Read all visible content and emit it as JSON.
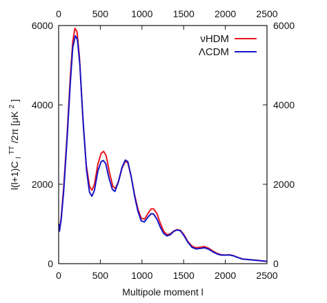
{
  "chart_data": {
    "type": "line",
    "xlabel": "Multipole moment l",
    "ylabel_parts": {
      "base": "l(l+1)C",
      "sub": "l",
      "sup": "TT",
      "mid": "/2π [μK",
      "sup2": "2",
      "end": "]"
    },
    "xlim": [
      0,
      2500
    ],
    "ylim": [
      0,
      6000
    ],
    "x_ticks": [
      0,
      500,
      1000,
      1500,
      2000,
      2500
    ],
    "y_ticks": [
      0,
      2000,
      4000,
      6000
    ],
    "x_tick_labels": [
      "0",
      "500",
      "1000",
      "1500",
      "2000",
      "2500"
    ],
    "y_tick_labels": [
      "0",
      "2000",
      "4000",
      "6000"
    ],
    "legend_position": "top-right",
    "grid": false,
    "mirrored_axes": "top and right",
    "series": [
      {
        "name": "νHDM",
        "color": "#e8141c",
        "points": [
          [
            2,
            1000
          ],
          [
            10,
            850
          ],
          [
            30,
            1150
          ],
          [
            60,
            1900
          ],
          [
            100,
            3200
          ],
          [
            140,
            4700
          ],
          [
            170,
            5600
          ],
          [
            195,
            5930
          ],
          [
            220,
            5850
          ],
          [
            250,
            5200
          ],
          [
            290,
            3700
          ],
          [
            330,
            2500
          ],
          [
            370,
            1950
          ],
          [
            400,
            1850
          ],
          [
            430,
            2000
          ],
          [
            470,
            2500
          ],
          [
            510,
            2780
          ],
          [
            540,
            2830
          ],
          [
            570,
            2720
          ],
          [
            610,
            2300
          ],
          [
            650,
            1950
          ],
          [
            680,
            1890
          ],
          [
            720,
            2080
          ],
          [
            760,
            2400
          ],
          [
            800,
            2580
          ],
          [
            830,
            2540
          ],
          [
            870,
            2200
          ],
          [
            910,
            1750
          ],
          [
            950,
            1380
          ],
          [
            990,
            1150
          ],
          [
            1030,
            1120
          ],
          [
            1070,
            1260
          ],
          [
            1110,
            1380
          ],
          [
            1140,
            1380
          ],
          [
            1180,
            1260
          ],
          [
            1220,
            1020
          ],
          [
            1260,
            820
          ],
          [
            1300,
            730
          ],
          [
            1340,
            750
          ],
          [
            1380,
            820
          ],
          [
            1420,
            860
          ],
          [
            1460,
            840
          ],
          [
            1500,
            740
          ],
          [
            1550,
            560
          ],
          [
            1600,
            440
          ],
          [
            1650,
            400
          ],
          [
            1700,
            415
          ],
          [
            1750,
            430
          ],
          [
            1800,
            390
          ],
          [
            1850,
            320
          ],
          [
            1900,
            260
          ],
          [
            1950,
            225
          ],
          [
            2000,
            220
          ],
          [
            2050,
            225
          ],
          [
            2100,
            200
          ],
          [
            2150,
            160
          ],
          [
            2200,
            120
          ],
          [
            2300,
            100
          ],
          [
            2400,
            80
          ],
          [
            2500,
            55
          ]
        ]
      },
      {
        "name": "ΛCDM",
        "color": "#1414c8",
        "points": [
          [
            2,
            1000
          ],
          [
            10,
            820
          ],
          [
            30,
            1100
          ],
          [
            60,
            1800
          ],
          [
            100,
            3100
          ],
          [
            140,
            4550
          ],
          [
            170,
            5450
          ],
          [
            200,
            5740
          ],
          [
            225,
            5650
          ],
          [
            255,
            5000
          ],
          [
            295,
            3550
          ],
          [
            335,
            2350
          ],
          [
            370,
            1800
          ],
          [
            400,
            1700
          ],
          [
            430,
            1850
          ],
          [
            470,
            2330
          ],
          [
            510,
            2570
          ],
          [
            535,
            2600
          ],
          [
            565,
            2520
          ],
          [
            605,
            2150
          ],
          [
            645,
            1870
          ],
          [
            675,
            1820
          ],
          [
            715,
            2050
          ],
          [
            760,
            2420
          ],
          [
            800,
            2610
          ],
          [
            830,
            2570
          ],
          [
            870,
            2200
          ],
          [
            910,
            1720
          ],
          [
            950,
            1330
          ],
          [
            990,
            1080
          ],
          [
            1030,
            1050
          ],
          [
            1070,
            1170
          ],
          [
            1110,
            1260
          ],
          [
            1140,
            1250
          ],
          [
            1180,
            1120
          ],
          [
            1220,
            920
          ],
          [
            1260,
            760
          ],
          [
            1300,
            700
          ],
          [
            1340,
            730
          ],
          [
            1380,
            810
          ],
          [
            1420,
            850
          ],
          [
            1460,
            830
          ],
          [
            1500,
            720
          ],
          [
            1550,
            540
          ],
          [
            1600,
            410
          ],
          [
            1650,
            370
          ],
          [
            1700,
            385
          ],
          [
            1750,
            400
          ],
          [
            1800,
            365
          ],
          [
            1850,
            300
          ],
          [
            1900,
            245
          ],
          [
            1950,
            215
          ],
          [
            2000,
            215
          ],
          [
            2050,
            220
          ],
          [
            2100,
            195
          ],
          [
            2150,
            155
          ],
          [
            2200,
            118
          ],
          [
            2300,
            98
          ],
          [
            2400,
            78
          ],
          [
            2500,
            55
          ]
        ]
      }
    ]
  }
}
